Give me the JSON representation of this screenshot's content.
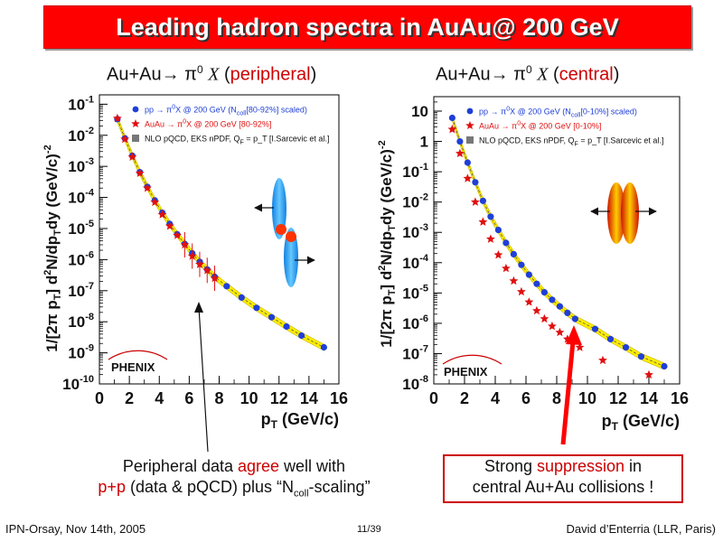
{
  "slide": {
    "title": "Leading hadron spectra in AuAu@ 200 GeV",
    "footer_left": "IPN-Orsay, Nov 14th, 2005",
    "page_number": "11/39",
    "footer_right": "David d’Enterria (LLR, Paris)"
  },
  "left_panel": {
    "heading_prefix": "Au+Au→ π",
    "heading_pi_super": "0",
    "heading_x": "X",
    "heading_open": "(",
    "heading_word": "peripheral",
    "heading_close": ")"
  },
  "right_panel": {
    "heading_prefix": "Au+Au→ π",
    "heading_pi_super": "0",
    "heading_x": "X",
    "heading_open": "(",
    "heading_word": "central",
    "heading_close": ")"
  },
  "captions": {
    "left_pre": "Peripheral data ",
    "left_accent": "agree",
    "left_mid": " well with",
    "left_line2_accent": "p+p",
    "left_line2_rest": " (data & pQCD) plus “N",
    "left_line2_sub": "coll",
    "left_line2_end": "-scaling”",
    "right_pre": "Strong ",
    "right_accent": "suppression",
    "right_mid": " in",
    "right_line2": "central Au+Au collisions !"
  },
  "colors": {
    "pp_points": "#1f3fd8",
    "auau_points": "#e01010",
    "pqcd_band": "#ffee00",
    "title_bg": "#ff0000",
    "arrow_red": "#ff0000"
  },
  "chart_data": [
    {
      "type": "scatter",
      "log_y": true,
      "xlabel": "p",
      "xlabel_sub": "T",
      "xlabel_units": "(GeV/c)",
      "ylabel": "1/[2π p_T] d²N/dp_Tdy (GeV/c)^-2",
      "xlim": [
        0,
        16
      ],
      "ylim": [
        1e-10,
        0.2
      ],
      "x_ticks": [
        0,
        2,
        4,
        6,
        8,
        10,
        12,
        14,
        16
      ],
      "y_ticks": [
        -10,
        -9,
        -8,
        -7,
        -6,
        -5,
        -4,
        -3,
        -2,
        -1
      ],
      "legend": [
        {
          "marker": "circle",
          "color": "#1f3fd8",
          "pre": "pp → π",
          "sup": "0",
          "post": "X @ 200 GeV (N",
          "sub": "coll",
          "end": "[80-92%] scaled)"
        },
        {
          "marker": "star",
          "color": "#e01010",
          "pre": "AuAu → π",
          "sup": "0",
          "post": "X @ 200 GeV [80-92%]",
          "sub": "",
          "end": ""
        },
        {
          "marker": "square",
          "color": "#777777",
          "pre": "NLO pQCD, EKS nPDF, Q",
          "sup": "",
          "post": "",
          "sub": "F",
          "end": " = p_T [I.Sarcevic et al.]"
        }
      ],
      "logo": "PHENIX",
      "series": [
        {
          "name": "pp",
          "marker": "circle",
          "x": [
            1.2,
            1.7,
            2.2,
            2.7,
            3.2,
            3.7,
            4.2,
            4.7,
            5.2,
            5.7,
            6.2,
            6.7,
            7.2,
            7.7,
            8.5,
            9.5,
            10.5,
            11.5,
            12.5,
            13.5,
            15.0
          ],
          "y": [
            0.033,
            0.008,
            0.0022,
            0.00065,
            0.00022,
            8e-05,
            3.2e-05,
            1.4e-05,
            6.5e-06,
            3.2e-06,
            1.6e-06,
            8.5e-07,
            4.8e-07,
            2.8e-07,
            1.4e-07,
            6e-08,
            2.8e-08,
            1.4e-08,
            7e-09,
            3.6e-09,
            1.5e-09
          ]
        },
        {
          "name": "AuAu",
          "marker": "star",
          "x": [
            1.2,
            1.7,
            2.2,
            2.7,
            3.2,
            3.7,
            4.2,
            4.7,
            5.2,
            5.7,
            6.2,
            6.7,
            7.2,
            7.7
          ],
          "y": [
            0.035,
            0.0075,
            0.002,
            0.0006,
            0.0002,
            7e-05,
            2.8e-05,
            1.2e-05,
            6e-06,
            3e-06,
            1.3e-06,
            7e-07,
            4.5e-07,
            2.5e-07
          ]
        }
      ]
    },
    {
      "type": "scatter",
      "log_y": true,
      "xlabel": "p",
      "xlabel_sub": "T",
      "xlabel_units": "(GeV/c)",
      "ylabel": "1/[2π p_T] d²N/dp_Tdy (GeV/c)^-2",
      "xlim": [
        0,
        16
      ],
      "ylim": [
        1e-08,
        30
      ],
      "x_ticks": [
        0,
        2,
        4,
        6,
        8,
        10,
        12,
        14,
        16
      ],
      "y_ticks": [
        -8,
        -7,
        -6,
        -5,
        -4,
        -3,
        -2,
        -1,
        0,
        1
      ],
      "legend": [
        {
          "marker": "circle",
          "color": "#1f3fd8",
          "pre": "pp → π",
          "sup": "0",
          "post": "X @ 200 GeV (N",
          "sub": "coll",
          "end": "[0-10%] scaled)"
        },
        {
          "marker": "star",
          "color": "#e01010",
          "pre": "AuAu → π",
          "sup": "0",
          "post": "X @ 200 GeV [0-10%]",
          "sub": "",
          "end": ""
        },
        {
          "marker": "square",
          "color": "#777777",
          "pre": "NLO pQCD, EKS nPDF, Q",
          "sup": "",
          "post": "",
          "sub": "F",
          "end": " = p_T [I.Sarcevic et al.]"
        }
      ],
      "logo": "PHENIX",
      "series": [
        {
          "name": "pp",
          "marker": "circle",
          "x": [
            1.2,
            1.7,
            2.2,
            2.7,
            3.2,
            3.7,
            4.2,
            4.7,
            5.2,
            5.7,
            6.2,
            6.7,
            7.2,
            7.7,
            8.2,
            8.7,
            9.2,
            10.5,
            11.5,
            12.5,
            13.5,
            15.0
          ],
          "y": [
            6.0,
            1.0,
            0.2,
            0.045,
            0.011,
            0.0033,
            0.0012,
            0.00045,
            0.00019,
            8.5e-05,
            4e-05,
            2e-05,
            1.05e-05,
            6e-06,
            3.6e-06,
            2.2e-06,
            1.4e-06,
            6.5e-07,
            3e-07,
            1.6e-07,
            8e-08,
            3.8e-08
          ]
        },
        {
          "name": "AuAu",
          "marker": "star",
          "x": [
            1.2,
            1.7,
            2.2,
            2.7,
            3.2,
            3.7,
            4.2,
            4.7,
            5.2,
            5.7,
            6.2,
            6.7,
            7.2,
            7.7,
            8.2,
            8.7,
            9.5,
            11.0,
            14.0
          ],
          "y": [
            2.5,
            0.4,
            0.06,
            0.01,
            0.0022,
            0.0006,
            0.00018,
            6.5e-05,
            2.5e-05,
            1.1e-05,
            5e-06,
            2.6e-06,
            1.4e-06,
            8e-07,
            5e-07,
            3e-07,
            1.6e-07,
            6e-08,
            2e-08
          ]
        }
      ]
    }
  ]
}
